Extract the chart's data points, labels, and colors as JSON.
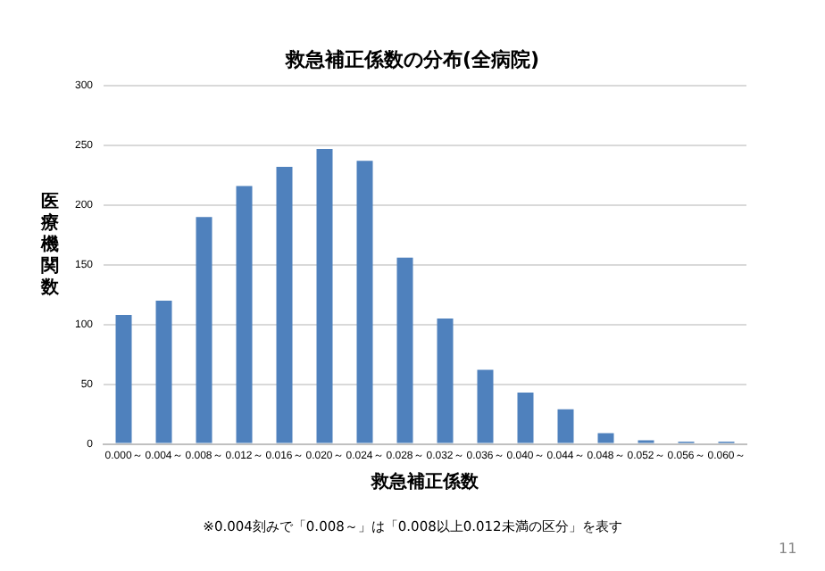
{
  "chart_data": {
    "type": "bar",
    "title": "救急補正係数の分布(全病院)",
    "xlabel": "救急補正係数",
    "ylabel": "医療機関数",
    "categories": [
      "0.000～",
      "0.004～",
      "0.008～",
      "0.012～",
      "0.016～",
      "0.020～",
      "0.024～",
      "0.028～",
      "0.032～",
      "0.036～",
      "0.040～",
      "0.044～",
      "0.048～",
      "0.052～",
      "0.056～",
      "0.060～"
    ],
    "values": [
      108,
      120,
      190,
      216,
      232,
      247,
      237,
      156,
      105,
      62,
      43,
      29,
      9,
      3,
      2,
      2
    ],
    "color": "#4f81bd",
    "ylim": [
      0,
      300
    ],
    "yticks": [
      0,
      50,
      100,
      150,
      200,
      250,
      300
    ],
    "grid": "y",
    "legend": false,
    "annotations": [
      "※0.004刻みで「0.008～」は「0.008以上0.012未満の区分」を表す",
      "11"
    ]
  }
}
